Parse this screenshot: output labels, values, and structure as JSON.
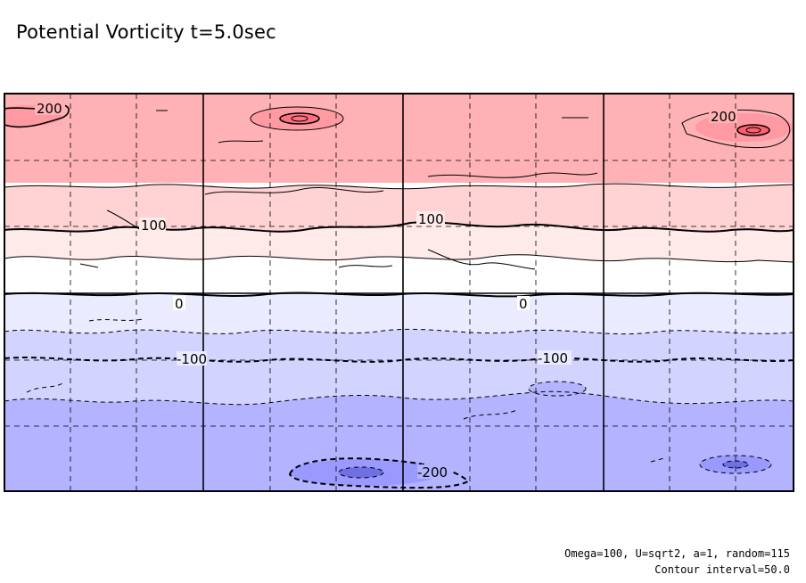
{
  "chart_data": {
    "type": "contour",
    "title": "Potential Vorticity t=5.0sec",
    "colors": {
      "pos_strong": "#ff9aa2",
      "pos_mid": "#ffb2b5",
      "pos_weak": "#ffd3d3",
      "pos_faint": "#ffeaea",
      "zero": "#ffffff",
      "neg_faint": "#ebebff",
      "neg_weak": "#d3d3ff",
      "neg_mid": "#b3b3ff",
      "neg_strong": "#7777ee"
    },
    "contour_labels": [
      {
        "id": "c-200-top",
        "text": "200"
      },
      {
        "id": "c-200-topright",
        "text": "200"
      },
      {
        "id": "c-100-left",
        "text": "100"
      },
      {
        "id": "c-100-mid",
        "text": "100"
      },
      {
        "id": "c-0-left",
        "text": "0"
      },
      {
        "id": "c-0-mid",
        "text": "0"
      },
      {
        "id": "c-m100-left",
        "text": "-100"
      },
      {
        "id": "c-m100-mid",
        "text": "-100"
      },
      {
        "id": "c-m200-bottom",
        "text": "-200"
      }
    ],
    "contour_interval": 50.0
  },
  "footer": {
    "params": "Omega=100, U=sqrt2, a=1, random=115",
    "interval": "Contour interval=50.0"
  }
}
